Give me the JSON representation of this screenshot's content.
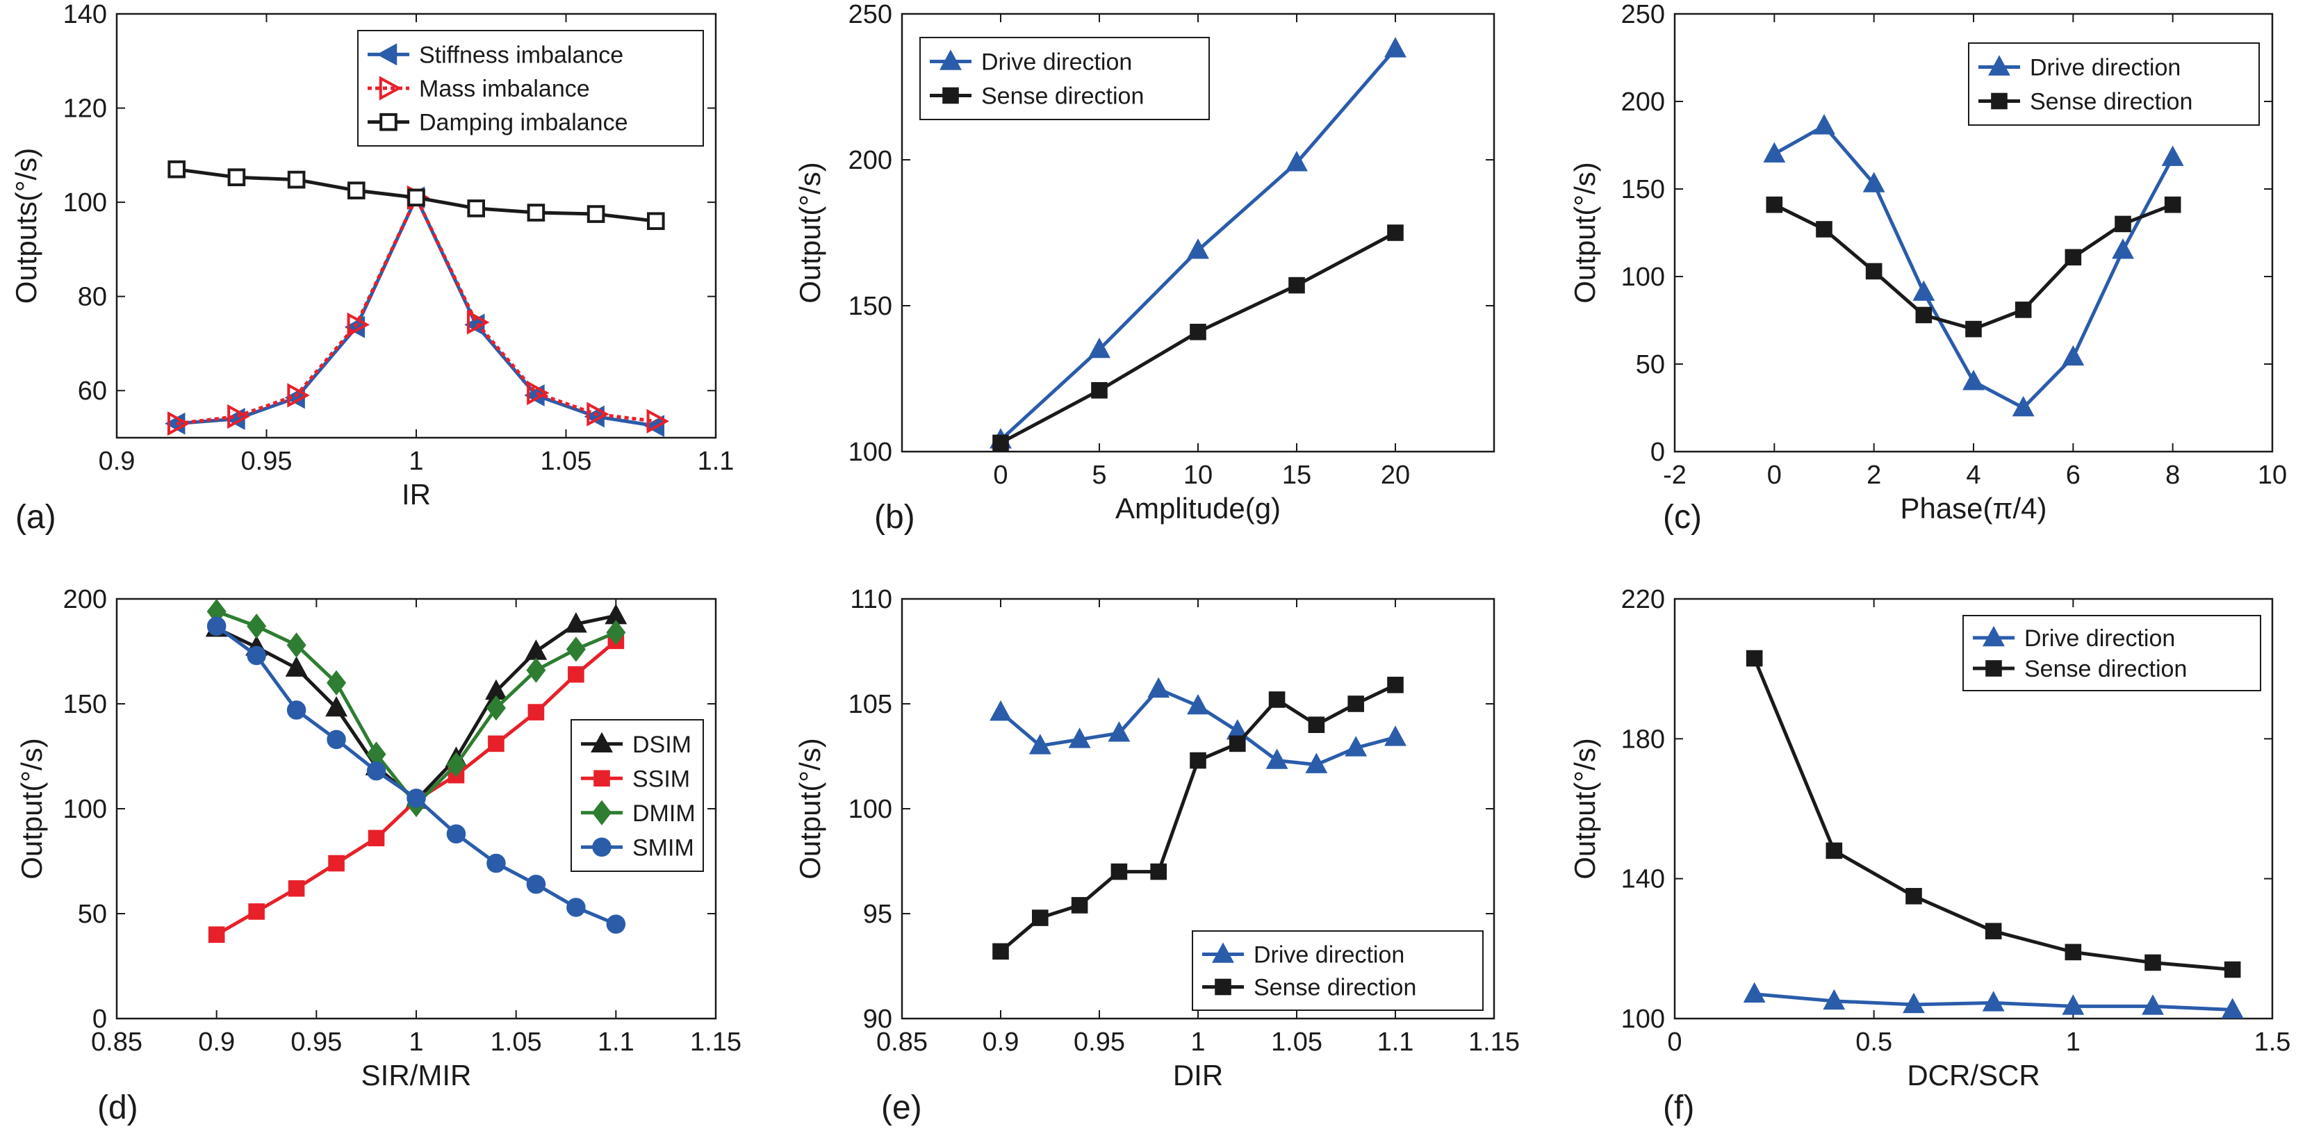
{
  "colors": {
    "blue": "#2a5caa",
    "red": "#e8202a",
    "black": "#1a1a1a",
    "green": "#2e7d32"
  },
  "chart_data": [
    {
      "type": "line",
      "panel": "(a)",
      "xlabel": "IR",
      "ylabel": "Outputs(°/s)",
      "xlim": [
        0.9,
        1.1
      ],
      "ylim": [
        50,
        140
      ],
      "xticks": [
        0.9,
        0.95,
        1,
        1.05,
        1.1
      ],
      "xtick_labels": [
        "0.9",
        "0.95",
        "1",
        "1.05",
        "1.1"
      ],
      "yticks": [
        60,
        80,
        100,
        120,
        140
      ],
      "ytick_labels": [
        "60",
        "80",
        "100",
        "120",
        "140"
      ],
      "legend_position": "top-right",
      "series": [
        {
          "name": "Stiffness imbalance",
          "color": "#2a5caa",
          "marker": "left-triangle",
          "dash": false,
          "x": [
            0.92,
            0.94,
            0.96,
            0.98,
            1.0,
            1.02,
            1.04,
            1.06,
            1.08
          ],
          "y": [
            53,
            54,
            58.5,
            73.5,
            101,
            74,
            59,
            54.5,
            52.5
          ]
        },
        {
          "name": "Mass imbalance",
          "color": "#e8202a",
          "marker": "right-triangle-open",
          "dash": true,
          "x": [
            0.92,
            0.94,
            0.96,
            0.98,
            1.0,
            1.02,
            1.04,
            1.06,
            1.08
          ],
          "y": [
            53,
            54.5,
            59,
            74,
            101,
            74.5,
            59.5,
            55,
            53.5
          ]
        },
        {
          "name": "Damping imbalance",
          "color": "#1a1a1a",
          "marker": "square-open",
          "dash": false,
          "x": [
            0.92,
            0.94,
            0.96,
            0.98,
            1.0,
            1.02,
            1.04,
            1.06,
            1.08
          ],
          "y": [
            107,
            105.3,
            104.8,
            102.5,
            101,
            98.7,
            97.8,
            97.5,
            96
          ]
        }
      ]
    },
    {
      "type": "line",
      "panel": "(b)",
      "xlabel": "Amplitude(g)",
      "ylabel": "Output(°/s)",
      "xlim": [
        -5,
        25
      ],
      "ylim": [
        100,
        250
      ],
      "xticks": [
        0,
        5,
        10,
        15,
        20
      ],
      "xtick_labels": [
        "0",
        "5",
        "10",
        "15",
        "20"
      ],
      "yticks": [
        100,
        150,
        200,
        250
      ],
      "ytick_labels": [
        "100",
        "150",
        "200",
        "250"
      ],
      "legend_position": "top-left",
      "series": [
        {
          "name": "Drive direction",
          "color": "#2a5caa",
          "marker": "triangle",
          "x": [
            0,
            5,
            10,
            15,
            20
          ],
          "y": [
            104,
            135,
            169,
            199,
            238
          ]
        },
        {
          "name": "Sense direction",
          "color": "#1a1a1a",
          "marker": "square",
          "x": [
            0,
            5,
            10,
            15,
            20
          ],
          "y": [
            103,
            121,
            141,
            157,
            175
          ]
        }
      ]
    },
    {
      "type": "line",
      "panel": "(c)",
      "xlabel": "Phase(π/4)",
      "ylabel": "Output(°/s)",
      "xlim": [
        -2,
        10
      ],
      "ylim": [
        0,
        250
      ],
      "xticks": [
        -2,
        0,
        2,
        4,
        6,
        8,
        10
      ],
      "xtick_labels": [
        "-2",
        "0",
        "2",
        "4",
        "6",
        "8",
        "10"
      ],
      "yticks": [
        0,
        50,
        100,
        150,
        200,
        250
      ],
      "ytick_labels": [
        "0",
        "50",
        "100",
        "150",
        "200",
        "250"
      ],
      "legend_position": "top-right",
      "series": [
        {
          "name": "Drive direction",
          "color": "#2a5caa",
          "marker": "triangle",
          "x": [
            0,
            1,
            2,
            3,
            4,
            5,
            6,
            7,
            8
          ],
          "y": [
            170,
            186,
            153,
            91,
            40,
            25,
            54,
            115,
            168
          ]
        },
        {
          "name": "Sense direction",
          "color": "#1a1a1a",
          "marker": "square",
          "x": [
            0,
            1,
            2,
            3,
            4,
            5,
            6,
            7,
            8
          ],
          "y": [
            141,
            127,
            103,
            78,
            70,
            81,
            111,
            130,
            141
          ]
        }
      ]
    },
    {
      "type": "line",
      "panel": "(d)",
      "xlabel": "SIR/MIR",
      "ylabel": "Output(°/s)",
      "xlim": [
        0.85,
        1.15
      ],
      "ylim": [
        0,
        200
      ],
      "xticks": [
        0.85,
        0.9,
        0.95,
        1,
        1.05,
        1.1,
        1.15
      ],
      "xtick_labels": [
        "0.85",
        "0.9",
        "0.95",
        "1",
        "1.05",
        "1.1",
        "1.15"
      ],
      "yticks": [
        0,
        50,
        100,
        150,
        200
      ],
      "ytick_labels": [
        "0",
        "50",
        "100",
        "150",
        "200"
      ],
      "legend_position": "center-right",
      "series": [
        {
          "name": "DSIM",
          "color": "#1a1a1a",
          "marker": "triangle",
          "x": [
            0.9,
            0.92,
            0.94,
            0.96,
            0.98,
            1.0,
            1.02,
            1.04,
            1.06,
            1.08,
            1.1
          ],
          "y": [
            186,
            177,
            167,
            148,
            120,
            104,
            124,
            156,
            175,
            188,
            192
          ]
        },
        {
          "name": "SSIM",
          "color": "#e8202a",
          "marker": "square",
          "x": [
            0.9,
            0.92,
            0.94,
            0.96,
            0.98,
            1.0,
            1.02,
            1.04,
            1.06,
            1.08,
            1.1
          ],
          "y": [
            40,
            51,
            62,
            74,
            86,
            104,
            116,
            131,
            146,
            164,
            180
          ]
        },
        {
          "name": "DMIM",
          "color": "#2e7d32",
          "marker": "diamond",
          "x": [
            0.9,
            0.92,
            0.94,
            0.96,
            0.98,
            1.0,
            1.02,
            1.04,
            1.06,
            1.08,
            1.1
          ],
          "y": [
            194,
            187,
            178,
            160,
            126,
            102,
            121,
            148,
            166,
            176,
            184
          ]
        },
        {
          "name": "SMIM",
          "color": "#2a5caa",
          "marker": "circle",
          "x": [
            0.9,
            0.92,
            0.94,
            0.96,
            0.98,
            1.0,
            1.02,
            1.04,
            1.06,
            1.08,
            1.1
          ],
          "y": [
            187,
            173,
            147,
            133,
            118,
            105,
            88,
            74,
            64,
            53,
            45
          ]
        }
      ]
    },
    {
      "type": "line",
      "panel": "(e)",
      "xlabel": "DIR",
      "ylabel": "Output(°/s)",
      "xlim": [
        0.85,
        1.15
      ],
      "ylim": [
        90,
        110
      ],
      "xticks": [
        0.85,
        0.9,
        0.95,
        1,
        1.05,
        1.1,
        1.15
      ],
      "xtick_labels": [
        "0.85",
        "0.9",
        "0.95",
        "1",
        "1.05",
        "1.1",
        "1.15"
      ],
      "yticks": [
        90,
        95,
        100,
        105,
        110
      ],
      "ytick_labels": [
        "90",
        "95",
        "100",
        "105",
        "110"
      ],
      "legend_position": "bottom-right",
      "series": [
        {
          "name": "Drive direction",
          "color": "#2a5caa",
          "marker": "triangle",
          "x": [
            0.9,
            0.92,
            0.94,
            0.96,
            0.98,
            1.0,
            1.02,
            1.04,
            1.06,
            1.08,
            1.1
          ],
          "y": [
            104.6,
            103.0,
            103.3,
            103.6,
            105.7,
            104.9,
            103.7,
            102.3,
            102.1,
            102.9,
            103.4
          ]
        },
        {
          "name": "Sense direction",
          "color": "#1a1a1a",
          "marker": "square",
          "x": [
            0.9,
            0.92,
            0.94,
            0.96,
            0.98,
            1.0,
            1.02,
            1.04,
            1.06,
            1.08,
            1.1
          ],
          "y": [
            93.2,
            94.8,
            95.4,
            97.0,
            97.0,
            102.3,
            103.1,
            105.2,
            104.0,
            105.0,
            105.9
          ]
        }
      ]
    },
    {
      "type": "line",
      "panel": "(f)",
      "xlabel": "DCR/SCR",
      "ylabel": "Output(°/s)",
      "xlim": [
        0,
        1.5
      ],
      "ylim": [
        100,
        220
      ],
      "xticks": [
        0,
        0.5,
        1,
        1.5
      ],
      "xtick_labels": [
        "0",
        "0.5",
        "1",
        "1.5"
      ],
      "yticks": [
        100,
        140,
        180,
        220
      ],
      "ytick_labels": [
        "100",
        "140",
        "180",
        "220"
      ],
      "legend_position": "top-right",
      "series": [
        {
          "name": "Drive direction",
          "color": "#2a5caa",
          "marker": "triangle",
          "x": [
            0.2,
            0.4,
            0.6,
            0.8,
            1.0,
            1.2,
            1.4
          ],
          "y": [
            107,
            105,
            104,
            104.5,
            103.5,
            103.5,
            102.5
          ]
        },
        {
          "name": "Sense direction",
          "color": "#1a1a1a",
          "marker": "square",
          "x": [
            0.2,
            0.4,
            0.6,
            0.8,
            1.0,
            1.2,
            1.4
          ],
          "y": [
            203,
            148,
            135,
            125,
            119,
            116,
            114
          ]
        }
      ]
    }
  ]
}
